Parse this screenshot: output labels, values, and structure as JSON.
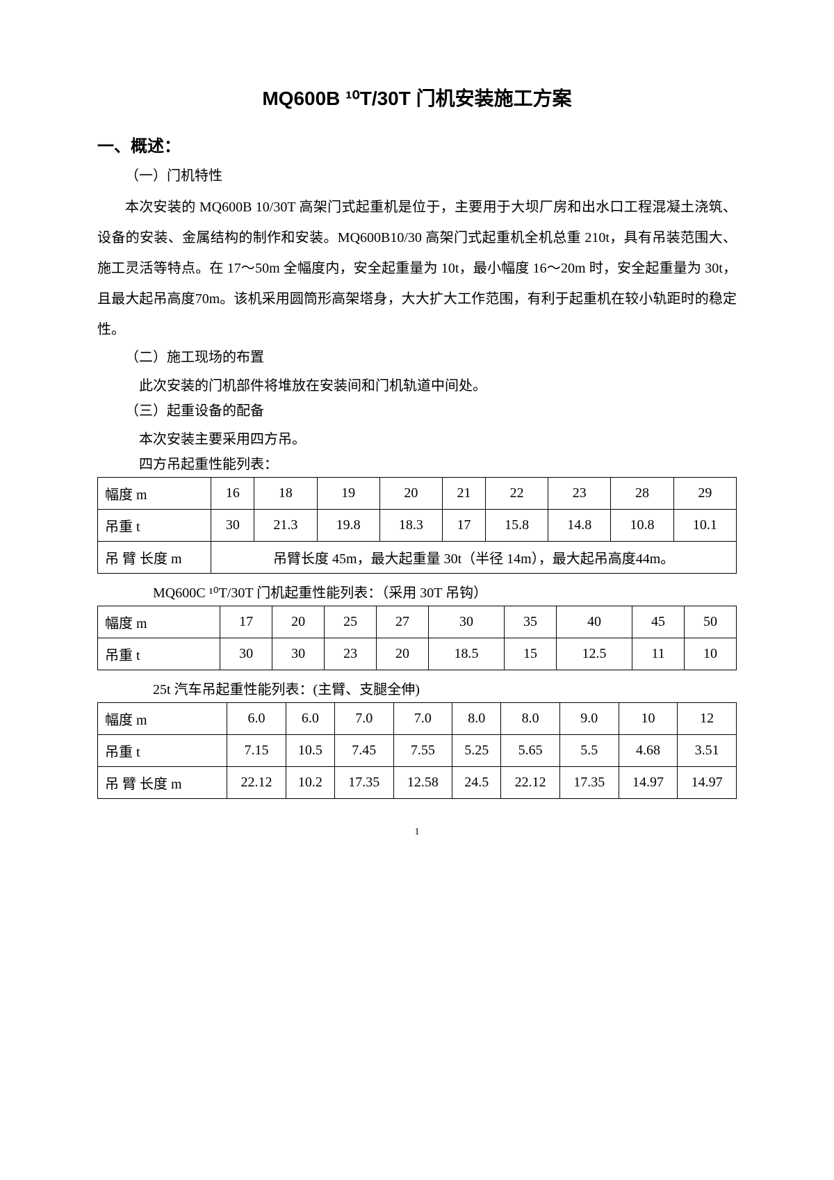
{
  "title": "MQ600B ¹⁰T/30T 门机安装施工方案",
  "section1": {
    "heading": "一、概述：",
    "sub1": "（一）门机特性",
    "para1": "本次安装的 MQ600B 10/30T 高架门式起重机是位于，主要用于大坝厂房和出水口工程混凝土浇筑、设备的安装、金属结构的制作和安装。MQ600B10/30 高架门式起重机全机总重 210t，具有吊装范围大、施工灵活等特点。在 17～50m 全幅度内，安全起重量为 10t，最小幅度 16～20m 时，安全起重量为 30t，且最大起吊高度70m。该机采用圆筒形高架塔身，大大扩大工作范围，有利于起重机在较小轨距时的稳定性。",
    "sub2": "（二）施工现场的布置",
    "para2": "此次安装的门机部件将堆放在安装间和门机轨道中间处。",
    "sub3": "（三）起重设备的配备",
    "para3": "本次安装主要采用四方吊。",
    "table1_caption": "四方吊起重性能列表：",
    "table2_caption": "MQ600C ¹⁰T/30T 门机起重性能列表：（采用 30T 吊钩）",
    "table3_caption": "25t 汽车吊起重性能列表：(主臂、支腿全伸)"
  },
  "table1": {
    "row_labels": [
      "幅度 m",
      "吊重 t",
      "吊 臂 长度 m"
    ],
    "row1": [
      "16",
      "18",
      "19",
      "20",
      "21",
      "22",
      "23",
      "28",
      "29"
    ],
    "row2": [
      "30",
      "21.3",
      "19.8",
      "18.3",
      "17",
      "15.8",
      "14.8",
      "10.8",
      "10.1"
    ],
    "row3_span": "吊臂长度 45m，最大起重量 30t（半径 14m），最大起吊高度44m。"
  },
  "table2": {
    "row_labels": [
      "幅度 m",
      "吊重 t"
    ],
    "row1": [
      "17",
      "20",
      "25",
      "27",
      "30",
      "35",
      "40",
      "45",
      "50"
    ],
    "row2": [
      "30",
      "30",
      "23",
      "20",
      "18.5",
      "15",
      "12.5",
      "11",
      "10"
    ]
  },
  "table3": {
    "row_labels": [
      "幅度 m",
      "吊重 t",
      "吊 臂 长度 m"
    ],
    "row1": [
      "6.0",
      "6.0",
      "7.0",
      "7.0",
      "8.0",
      "8.0",
      "9.0",
      "10",
      "12"
    ],
    "row2": [
      "7.15",
      "10.5",
      "7.45",
      "7.55",
      "5.25",
      "5.65",
      "5.5",
      "4.68",
      "3.51"
    ],
    "row3": [
      "22.12",
      "10.2",
      "17.35",
      "12.58",
      "24.5",
      "22.12",
      "17.35",
      "14.97",
      "14.97"
    ]
  },
  "page_number": "1"
}
